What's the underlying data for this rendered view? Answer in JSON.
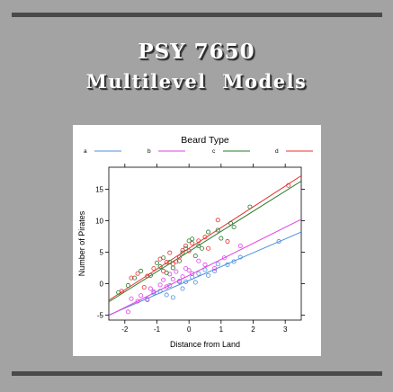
{
  "header": {
    "course": "PSY 7650",
    "subtitle": "Multilevel  Models"
  },
  "chart_data": {
    "type": "scatter",
    "legend_title": "Beard Type",
    "legend_position": "top",
    "xlabel": "Distance from Land",
    "ylabel": "Number of Pirates",
    "xlim": [
      -2.5,
      3.5
    ],
    "ylim": [
      -5.8,
      18.5
    ],
    "xticks": [
      -2,
      -1,
      0,
      1,
      2,
      3
    ],
    "yticks": [
      -5,
      0,
      5,
      10,
      15
    ],
    "grid": false,
    "series": [
      {
        "name": "a",
        "color": "#4f8fdc",
        "line": {
          "intercept": 0.5,
          "slope": 2.2
        },
        "points": [
          [
            -1.3,
            -2.5
          ],
          [
            -1.1,
            -1.5
          ],
          [
            -0.9,
            -1.2
          ],
          [
            -0.7,
            -1.8
          ],
          [
            -0.6,
            -0.3
          ],
          [
            -0.5,
            -2.2
          ],
          [
            -0.3,
            0.4
          ],
          [
            -0.2,
            -0.8
          ],
          [
            -0.1,
            0.3
          ],
          [
            0.1,
            1.0
          ],
          [
            0.2,
            0.2
          ],
          [
            0.3,
            1.6
          ],
          [
            0.5,
            2.2
          ],
          [
            0.6,
            1.3
          ],
          [
            0.8,
            2.0
          ],
          [
            0.9,
            3.1
          ],
          [
            1.2,
            3.0
          ],
          [
            1.4,
            3.5
          ],
          [
            1.6,
            4.2
          ],
          [
            2.8,
            6.7
          ]
        ]
      },
      {
        "name": "b",
        "color": "#e040e8",
        "line": {
          "intercept": 1.3,
          "slope": 2.55
        },
        "points": [
          [
            -1.9,
            -4.5
          ],
          [
            -1.8,
            -2.4
          ],
          [
            -1.6,
            -2.8
          ],
          [
            -1.5,
            -1.9
          ],
          [
            -1.3,
            -2.6
          ],
          [
            -1.2,
            -0.8
          ],
          [
            -1.1,
            -1.3
          ],
          [
            -0.9,
            -0.2
          ],
          [
            -0.8,
            0.6
          ],
          [
            -0.7,
            -0.5
          ],
          [
            -0.6,
            1.5
          ],
          [
            -0.5,
            0.7
          ],
          [
            -0.4,
            1.9
          ],
          [
            -0.3,
            0.3
          ],
          [
            -0.2,
            1.1
          ],
          [
            -0.1,
            2.4
          ],
          [
            0.0,
            2.1
          ],
          [
            0.1,
            1.6
          ],
          [
            0.3,
            3.6
          ],
          [
            0.5,
            3.0
          ],
          [
            0.8,
            2.4
          ],
          [
            1.1,
            4.1
          ],
          [
            1.6,
            6.0
          ]
        ]
      },
      {
        "name": "c",
        "color": "#2a7a2a",
        "line": {
          "intercept": 5.1,
          "slope": 3.2
        },
        "points": [
          [
            -2.2,
            -1.4
          ],
          [
            -1.9,
            -0.3
          ],
          [
            -1.7,
            0.9
          ],
          [
            -1.5,
            2.0
          ],
          [
            -1.2,
            1.3
          ],
          [
            -1.0,
            3.3
          ],
          [
            -0.9,
            2.7
          ],
          [
            -0.8,
            4.1
          ],
          [
            -0.7,
            1.7
          ],
          [
            -0.6,
            3.4
          ],
          [
            -0.5,
            2.5
          ],
          [
            -0.3,
            3.6
          ],
          [
            -0.2,
            4.9
          ],
          [
            -0.1,
            5.6
          ],
          [
            0.0,
            6.8
          ],
          [
            0.1,
            7.1
          ],
          [
            0.2,
            4.4
          ],
          [
            0.3,
            6.0
          ],
          [
            0.4,
            5.6
          ],
          [
            0.6,
            8.2
          ],
          [
            0.9,
            8.5
          ],
          [
            1.0,
            7.2
          ],
          [
            1.3,
            9.6
          ],
          [
            1.4,
            9.0
          ],
          [
            1.9,
            12.2
          ]
        ]
      },
      {
        "name": "d",
        "color": "#e83030",
        "line": {
          "intercept": 5.6,
          "slope": 3.3
        },
        "points": [
          [
            -2.1,
            -1.2
          ],
          [
            -1.8,
            0.9
          ],
          [
            -1.6,
            1.6
          ],
          [
            -1.4,
            -0.6
          ],
          [
            -1.3,
            1.2
          ],
          [
            -1.1,
            2.4
          ],
          [
            -0.9,
            3.9
          ],
          [
            -0.8,
            2.0
          ],
          [
            -0.7,
            3.4
          ],
          [
            -0.6,
            4.9
          ],
          [
            -0.5,
            3.1
          ],
          [
            -0.4,
            3.5
          ],
          [
            -0.3,
            4.2
          ],
          [
            -0.2,
            5.3
          ],
          [
            -0.1,
            6.0
          ],
          [
            0.0,
            5.2
          ],
          [
            0.1,
            6.4
          ],
          [
            0.3,
            6.8
          ],
          [
            0.5,
            7.4
          ],
          [
            0.6,
            5.6
          ],
          [
            0.9,
            10.1
          ],
          [
            1.2,
            6.7
          ],
          [
            3.1,
            15.6
          ]
        ]
      }
    ]
  }
}
